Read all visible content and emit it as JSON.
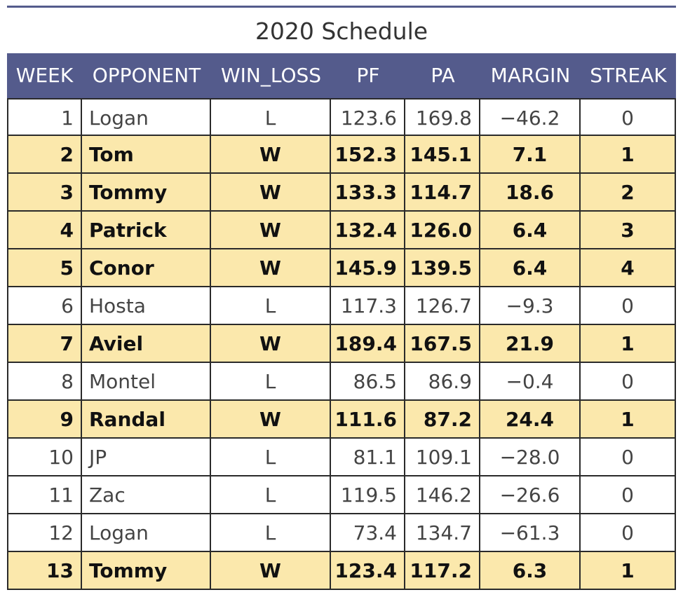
{
  "colors": {
    "header_bg": "#545b8c",
    "header_text": "#ffffff",
    "win_row_bg": "#fbe8ac",
    "loss_row_bg": "#ffffff",
    "grid": "#2a2a2a"
  },
  "chart_data": {
    "type": "table",
    "title": "2020 Schedule",
    "columns": [
      "WEEK",
      "OPPONENT",
      "WIN_LOSS",
      "PF",
      "PA",
      "MARGIN",
      "STREAK"
    ],
    "rows": [
      [
        "1",
        "Logan",
        "L",
        "123.6",
        "169.8",
        "−46.2",
        "0"
      ],
      [
        "2",
        "Tom",
        "W",
        "152.3",
        "145.1",
        "7.1",
        "1"
      ],
      [
        "3",
        "Tommy",
        "W",
        "133.3",
        "114.7",
        "18.6",
        "2"
      ],
      [
        "4",
        "Patrick",
        "W",
        "132.4",
        "126.0",
        "6.4",
        "3"
      ],
      [
        "5",
        "Conor",
        "W",
        "145.9",
        "139.5",
        "6.4",
        "4"
      ],
      [
        "6",
        "Hosta",
        "L",
        "117.3",
        "126.7",
        "−9.3",
        "0"
      ],
      [
        "7",
        "Aviel",
        "W",
        "189.4",
        "167.5",
        "21.9",
        "1"
      ],
      [
        "8",
        "Montel",
        "L",
        "86.5",
        "86.9",
        "−0.4",
        "0"
      ],
      [
        "9",
        "Randal",
        "W",
        "111.6",
        "87.2",
        "24.4",
        "1"
      ],
      [
        "10",
        "JP",
        "L",
        "81.1",
        "109.1",
        "−28.0",
        "0"
      ],
      [
        "11",
        "Zac",
        "L",
        "119.5",
        "146.2",
        "−26.6",
        "0"
      ],
      [
        "12",
        "Logan",
        "L",
        "73.4",
        "134.7",
        "−61.3",
        "0"
      ],
      [
        "13",
        "Tommy",
        "W",
        "123.4",
        "117.2",
        "6.3",
        "1"
      ]
    ]
  }
}
